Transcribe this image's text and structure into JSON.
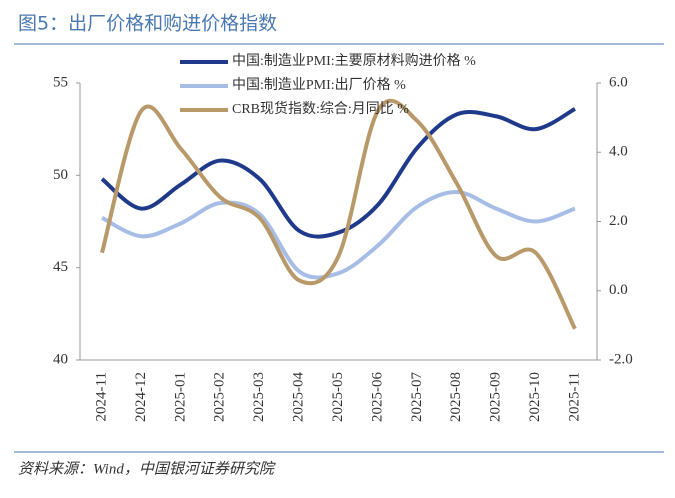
{
  "chart_data": {
    "type": "line",
    "title": "图5：出厂价格和购进价格指数",
    "source": "资料来源：Wind，中国银河证券研究院",
    "categories": [
      "2024-11",
      "2024-12",
      "2025-01",
      "2025-02",
      "2025-03",
      "2025-04",
      "2025-05",
      "2025-06",
      "2025-07",
      "2025-08",
      "2025-09",
      "2025-10",
      "2025-11"
    ],
    "series": [
      {
        "name": "中国:制造业PMI:主要原材料购进价格 %",
        "color": "#1f3a8a",
        "values": [
          49.8,
          48.2,
          49.5,
          50.8,
          49.8,
          47.0,
          46.9,
          48.4,
          51.5,
          53.3,
          53.2,
          52.5,
          53.6
        ]
      },
      {
        "name": "中国:制造业PMI:出厂价格 %",
        "color": "#a7bde6",
        "values": [
          47.7,
          46.7,
          47.4,
          48.5,
          47.9,
          44.8,
          44.7,
          46.2,
          48.3,
          49.1,
          48.2,
          47.5,
          48.2
        ]
      },
      {
        "name": "CRB现货指数:综合:月同比 %",
        "color": "#b8996a",
        "axis": "y2",
        "values": [
          1.1,
          5.2,
          4.1,
          2.7,
          2.1,
          0.3,
          1.0,
          5.2,
          4.9,
          3.1,
          1.0,
          1.1,
          -1.1
        ]
      }
    ],
    "ylim": [
      40,
      55
    ],
    "yticks": [
      40,
      45,
      50,
      55
    ],
    "y2lim": [
      -2,
      6
    ],
    "y2ticks": [
      {
        "value": -2,
        "label": "-2.0"
      },
      {
        "value": 0,
        "label": "0.0"
      },
      {
        "value": 2,
        "label": "2.0"
      },
      {
        "value": 4,
        "label": "4.0"
      },
      {
        "value": 6,
        "label": "6.0"
      }
    ]
  }
}
